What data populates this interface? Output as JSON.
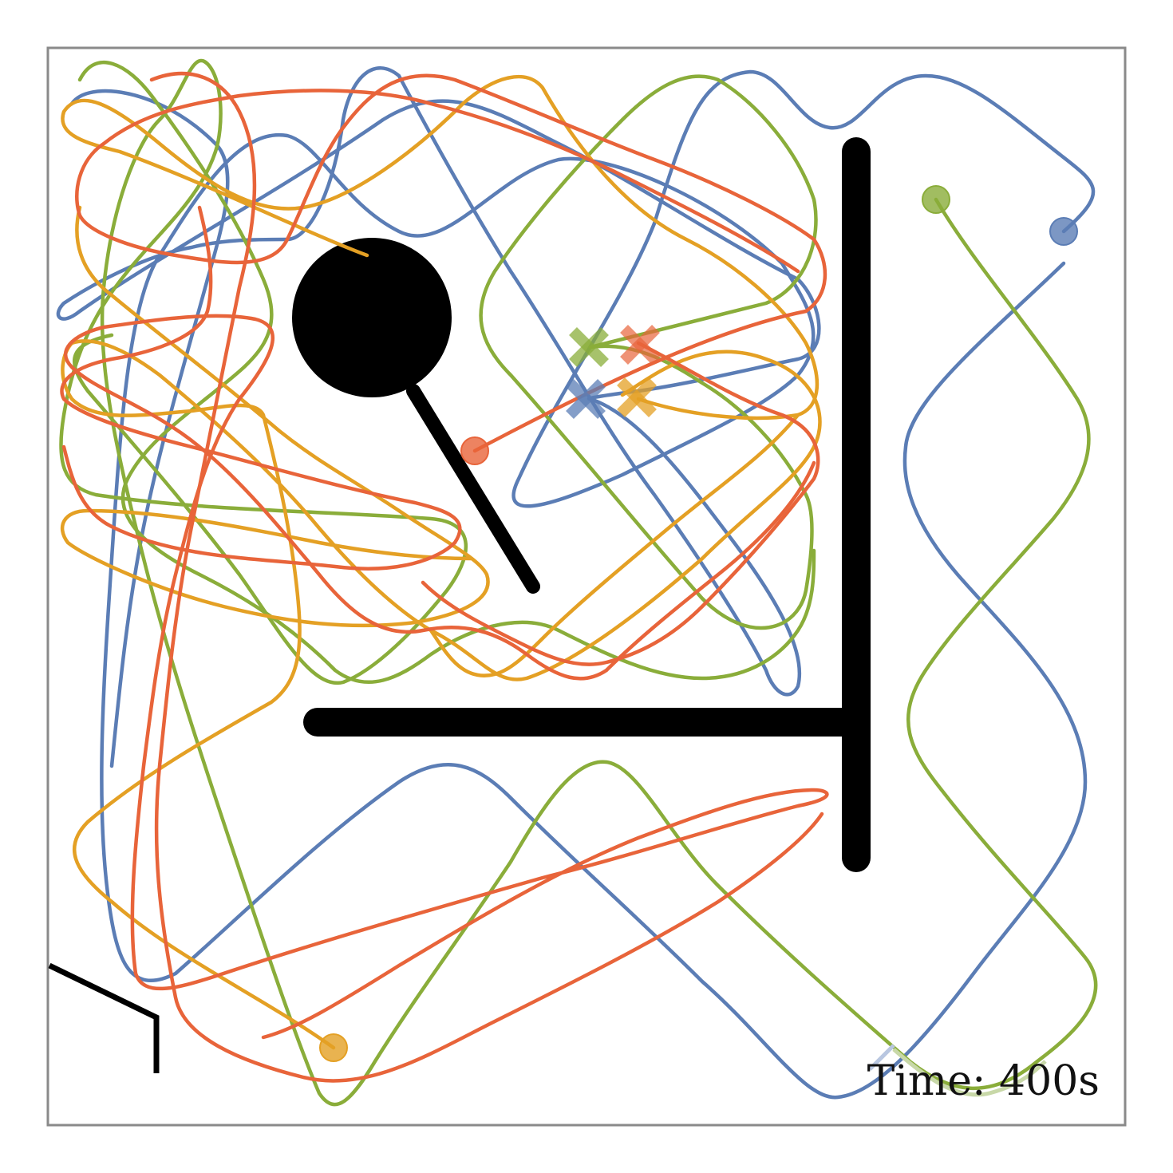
{
  "time_label": "Time: 400s",
  "colors": {
    "blue": "#5b7db5",
    "green": "#8aad3a",
    "orange": "#e4a024",
    "red": "#e8643a",
    "obstacle": "#000000",
    "frame": "#8a8a8a"
  },
  "agents": [
    {
      "id": "blue",
      "icon": "circle-marker",
      "goal_icon": "x-marker"
    },
    {
      "id": "green",
      "icon": "circle-marker",
      "goal_icon": "x-marker"
    },
    {
      "id": "orange",
      "icon": "circle-marker",
      "goal_icon": "x-marker"
    },
    {
      "id": "red",
      "icon": "circle-marker",
      "goal_icon": "x-marker"
    }
  ]
}
